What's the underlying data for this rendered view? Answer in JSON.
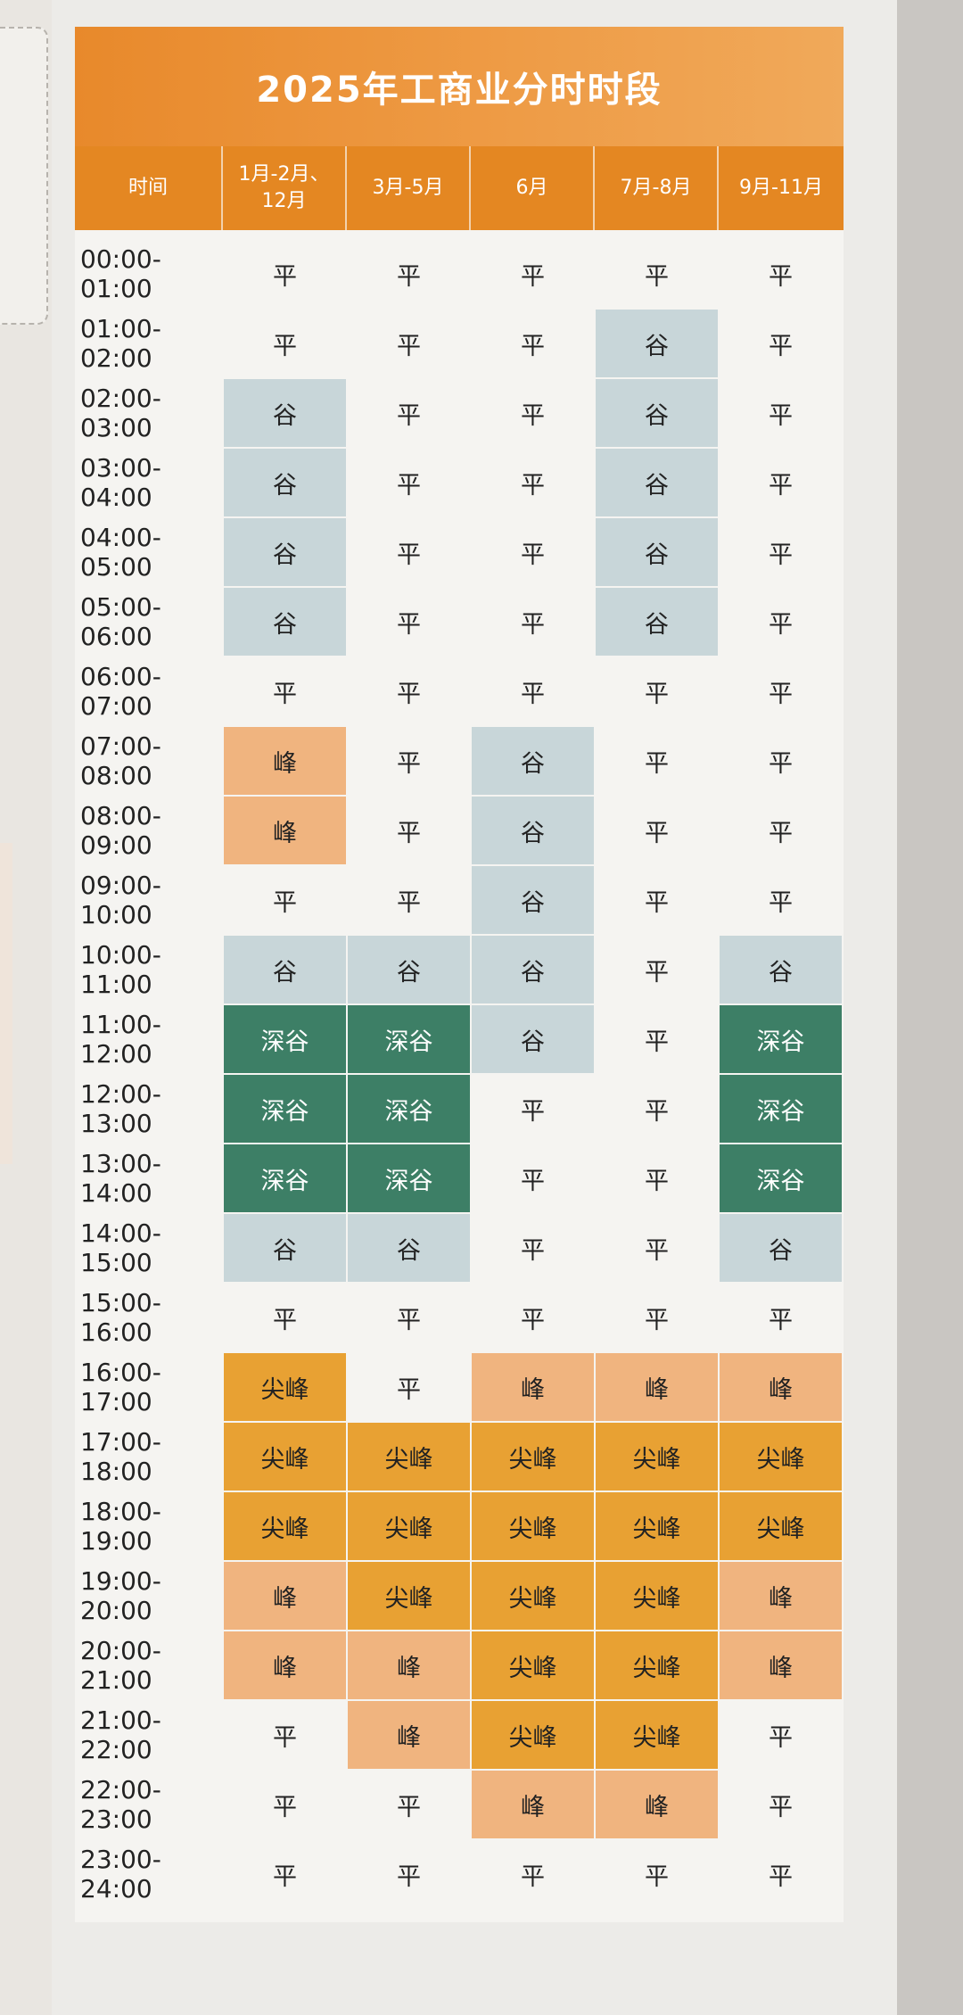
{
  "title": "2025年工商业分时时段",
  "headers": [
    "时间",
    "1月-2月、\n12月",
    "3月-5月",
    "6月",
    "7月-8月",
    "9月-11月"
  ],
  "labels": {
    "ping": "平",
    "gu": "谷",
    "shengu": "深谷",
    "feng": "峰",
    "jianfeng": "尖峰"
  },
  "colors": {
    "gu": "#c8d6d9",
    "shengu": "#3d7f66",
    "feng": "#f0b47f",
    "jianfeng": "#e8a133",
    "header": "#e48722"
  },
  "rows": [
    {
      "time": "00:00-01:00",
      "cells": [
        "平",
        "平",
        "平",
        "平",
        "平"
      ]
    },
    {
      "time": "01:00-02:00",
      "cells": [
        "平",
        "平",
        "平",
        "谷",
        "平"
      ]
    },
    {
      "time": "02:00-03:00",
      "cells": [
        "谷",
        "平",
        "平",
        "谷",
        "平"
      ]
    },
    {
      "time": "03:00-04:00",
      "cells": [
        "谷",
        "平",
        "平",
        "谷",
        "平"
      ]
    },
    {
      "time": "04:00-05:00",
      "cells": [
        "谷",
        "平",
        "平",
        "谷",
        "平"
      ]
    },
    {
      "time": "05:00-06:00",
      "cells": [
        "谷",
        "平",
        "平",
        "谷",
        "平"
      ]
    },
    {
      "time": "06:00-07:00",
      "cells": [
        "平",
        "平",
        "平",
        "平",
        "平"
      ]
    },
    {
      "time": "07:00-08:00",
      "cells": [
        "峰",
        "平",
        "谷",
        "平",
        "平"
      ]
    },
    {
      "time": "08:00-09:00",
      "cells": [
        "峰",
        "平",
        "谷",
        "平",
        "平"
      ]
    },
    {
      "time": "09:00-10:00",
      "cells": [
        "平",
        "平",
        "谷",
        "平",
        "平"
      ]
    },
    {
      "time": "10:00-11:00",
      "cells": [
        "谷",
        "谷",
        "谷",
        "平",
        "谷"
      ]
    },
    {
      "time": "11:00-12:00",
      "cells": [
        "深谷",
        "深谷",
        "谷",
        "平",
        "深谷"
      ]
    },
    {
      "time": "12:00-13:00",
      "cells": [
        "深谷",
        "深谷",
        "平",
        "平",
        "深谷"
      ]
    },
    {
      "time": "13:00-14:00",
      "cells": [
        "深谷",
        "深谷",
        "平",
        "平",
        "深谷"
      ]
    },
    {
      "time": "14:00-15:00",
      "cells": [
        "谷",
        "谷",
        "平",
        "平",
        "谷"
      ]
    },
    {
      "time": "15:00-16:00",
      "cells": [
        "平",
        "平",
        "平",
        "平",
        "平"
      ]
    },
    {
      "time": "16:00-17:00",
      "cells": [
        "尖峰",
        "平",
        "峰",
        "峰",
        "峰"
      ]
    },
    {
      "time": "17:00-18:00",
      "cells": [
        "尖峰",
        "尖峰",
        "尖峰",
        "尖峰",
        "尖峰"
      ]
    },
    {
      "time": "18:00-19:00",
      "cells": [
        "尖峰",
        "尖峰",
        "尖峰",
        "尖峰",
        "尖峰"
      ]
    },
    {
      "time": "19:00-20:00",
      "cells": [
        "峰",
        "尖峰",
        "尖峰",
        "尖峰",
        "峰"
      ]
    },
    {
      "time": "20:00-21:00",
      "cells": [
        "峰",
        "峰",
        "尖峰",
        "尖峰",
        "峰"
      ]
    },
    {
      "time": "21:00-22:00",
      "cells": [
        "平",
        "峰",
        "尖峰",
        "尖峰",
        "平"
      ]
    },
    {
      "time": "22:00-23:00",
      "cells": [
        "平",
        "平",
        "峰",
        "峰",
        "平"
      ]
    },
    {
      "time": "23:00-24:00",
      "cells": [
        "平",
        "平",
        "平",
        "平",
        "平"
      ]
    }
  ]
}
